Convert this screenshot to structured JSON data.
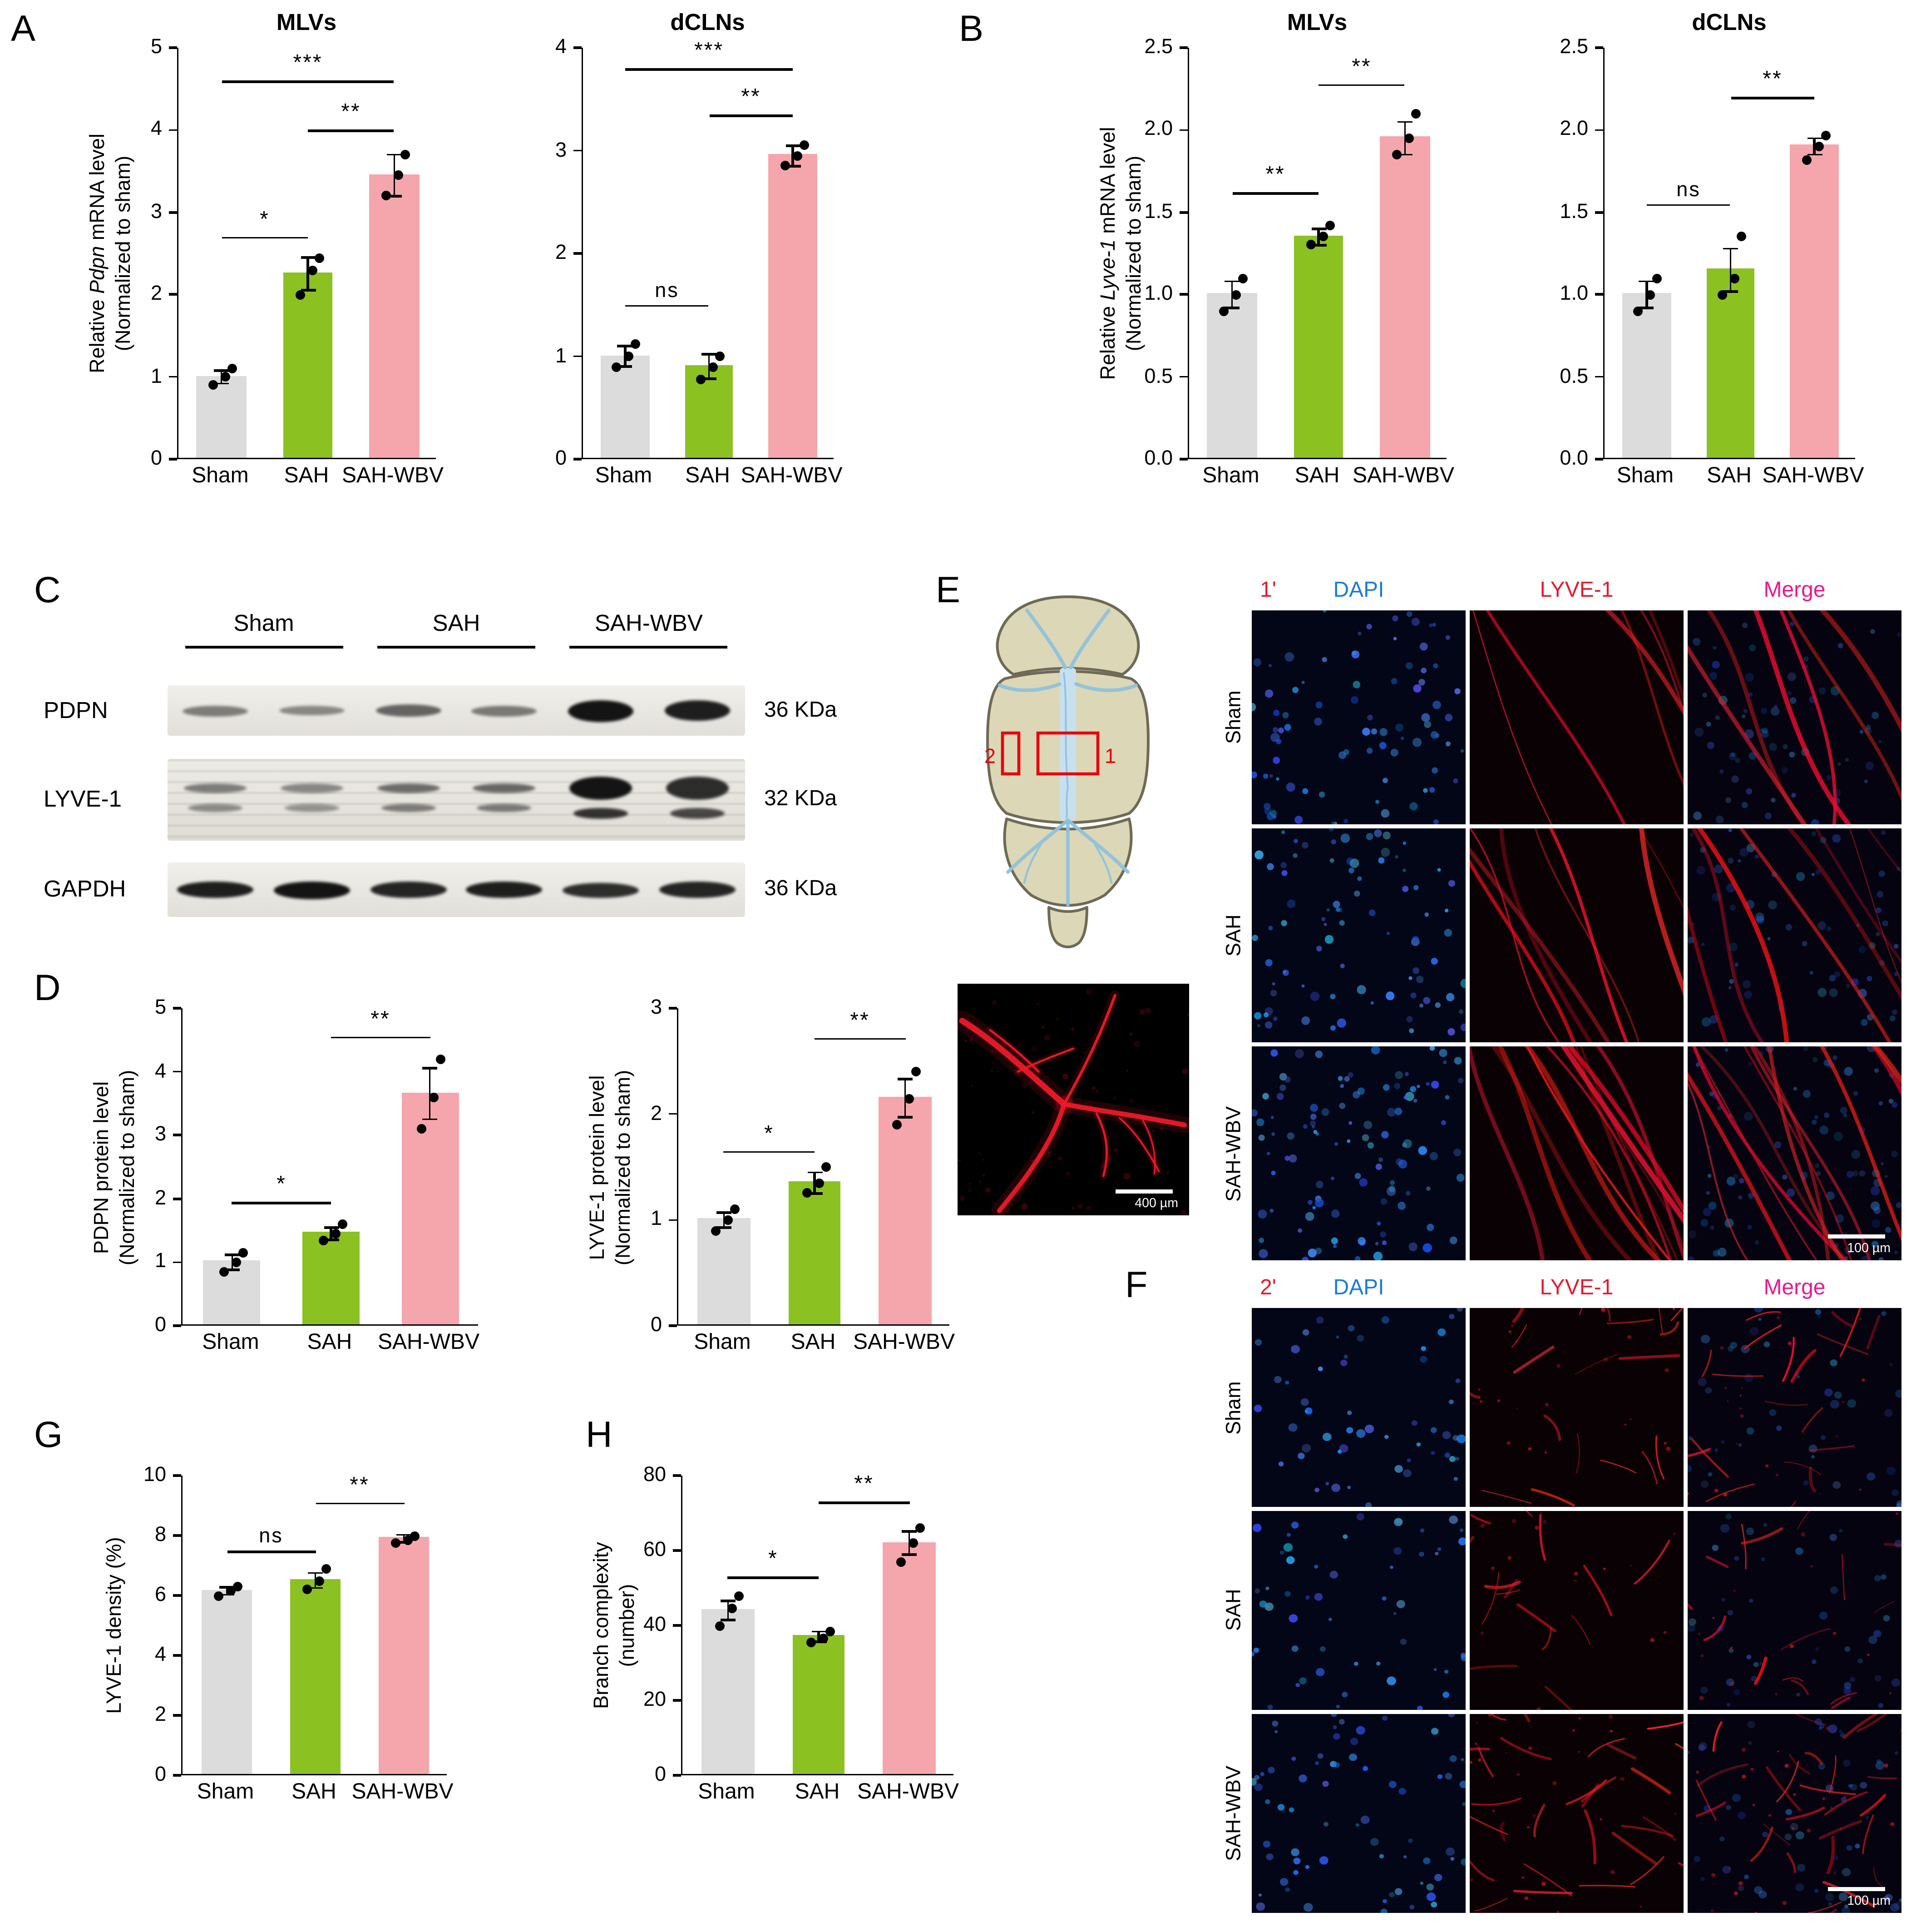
{
  "panel_labels": {
    "a": "A",
    "b": "B",
    "c": "C",
    "d": "D",
    "e": "E",
    "f": "F",
    "g": "G",
    "h": "H"
  },
  "colors": {
    "sham": "#dcdcdc",
    "sah": "#8cc122",
    "sah_wbv": "#f4a6ac",
    "dapi": "#1a7cd8",
    "red": "#e8192c",
    "merge": "#e9198c",
    "roi": "#e8000b"
  },
  "chart_data": [
    {
      "id": "A1",
      "panel": "A",
      "type": "bar",
      "title": "MLVs",
      "ylabel_lines": [
        [
          {
            "t": "Relative "
          },
          {
            "t": "Pdpn",
            "i": true
          },
          {
            "t": " mRNA level"
          }
        ],
        [
          {
            "t": "(Normalized to sham)"
          }
        ]
      ],
      "categories": [
        "Sham",
        "SAH",
        "SAH-WBV"
      ],
      "values": [
        1.0,
        2.25,
        3.45
      ],
      "errors": [
        0.08,
        0.2,
        0.25
      ],
      "points": [
        [
          0.9,
          1.0,
          1.1
        ],
        [
          2.0,
          2.3,
          2.45
        ],
        [
          3.2,
          3.45,
          3.7
        ]
      ],
      "yaxis": {
        "max": 5,
        "step": 1,
        "decimals": 0
      },
      "significance": [
        {
          "a": 0,
          "b": 1,
          "label": "*",
          "y": 2.7
        },
        {
          "a": 1,
          "b": 2,
          "label": "**",
          "y": 4.0
        },
        {
          "a": 0,
          "b": 2,
          "label": "***",
          "y": 4.6
        }
      ]
    },
    {
      "id": "A2",
      "panel": "A",
      "type": "bar",
      "title": "dCLNs",
      "categories": [
        "Sham",
        "SAH",
        "SAH-WBV"
      ],
      "values": [
        1.0,
        0.9,
        2.95
      ],
      "errors": [
        0.1,
        0.12,
        0.1
      ],
      "points": [
        [
          0.9,
          1.0,
          1.12
        ],
        [
          0.78,
          0.9,
          1.0
        ],
        [
          2.85,
          2.95,
          3.05
        ]
      ],
      "yaxis": {
        "max": 4,
        "step": 1,
        "decimals": 0
      },
      "significance": [
        {
          "a": 0,
          "b": 1,
          "label": "ns",
          "y": 1.5
        },
        {
          "a": 1,
          "b": 2,
          "label": "**",
          "y": 3.35
        },
        {
          "a": 0,
          "b": 2,
          "label": "***",
          "y": 3.8
        }
      ]
    },
    {
      "id": "B1",
      "panel": "B",
      "type": "bar",
      "title": "MLVs",
      "ylabel_lines": [
        [
          {
            "t": "Relative "
          },
          {
            "t": "Lyve-1",
            "i": true
          },
          {
            "t": " mRNA level"
          }
        ],
        [
          {
            "t": "(Normalized to sham)"
          }
        ]
      ],
      "categories": [
        "Sham",
        "SAH",
        "SAH-WBV"
      ],
      "values": [
        1.0,
        1.35,
        1.95
      ],
      "errors": [
        0.08,
        0.05,
        0.1
      ],
      "points": [
        [
          0.9,
          1.0,
          1.1
        ],
        [
          1.3,
          1.35,
          1.42
        ],
        [
          1.85,
          1.95,
          2.1
        ]
      ],
      "yaxis": {
        "max": 2.5,
        "step": 0.5,
        "decimals": 1
      },
      "significance": [
        {
          "a": 0,
          "b": 1,
          "label": "**",
          "y": 1.62
        },
        {
          "a": 1,
          "b": 2,
          "label": "**",
          "y": 2.28
        }
      ]
    },
    {
      "id": "B2",
      "panel": "B",
      "type": "bar",
      "title": "dCLNs",
      "categories": [
        "Sham",
        "SAH",
        "SAH-WBV"
      ],
      "values": [
        1.0,
        1.15,
        1.9
      ],
      "errors": [
        0.08,
        0.13,
        0.05
      ],
      "points": [
        [
          0.9,
          1.0,
          1.1
        ],
        [
          1.0,
          1.1,
          1.35
        ],
        [
          1.82,
          1.9,
          1.97
        ]
      ],
      "yaxis": {
        "max": 2.5,
        "step": 0.5,
        "decimals": 1
      },
      "significance": [
        {
          "a": 0,
          "b": 1,
          "label": "ns",
          "y": 1.55
        },
        {
          "a": 1,
          "b": 2,
          "label": "**",
          "y": 2.2
        }
      ]
    },
    {
      "id": "D1",
      "panel": "D",
      "type": "bar",
      "ylabel_lines": [
        [
          {
            "t": "PDPN protein level"
          }
        ],
        [
          {
            "t": "(Normalized to sham)"
          }
        ]
      ],
      "categories": [
        "Sham",
        "SAH",
        "SAH-WBV"
      ],
      "values": [
        1.0,
        1.45,
        3.65
      ],
      "errors": [
        0.12,
        0.1,
        0.4
      ],
      "points": [
        [
          0.85,
          1.0,
          1.15
        ],
        [
          1.35,
          1.45,
          1.6
        ],
        [
          3.1,
          3.6,
          4.2
        ]
      ],
      "yaxis": {
        "max": 5,
        "step": 1,
        "decimals": 0
      },
      "significance": [
        {
          "a": 0,
          "b": 1,
          "label": "*",
          "y": 1.95
        },
        {
          "a": 1,
          "b": 2,
          "label": "**",
          "y": 4.55
        }
      ]
    },
    {
      "id": "D2",
      "panel": "D",
      "type": "bar",
      "ylabel_lines": [
        [
          {
            "t": "LYVE-1 protein level"
          }
        ],
        [
          {
            "t": "(Normalized to sham)"
          }
        ]
      ],
      "categories": [
        "Sham",
        "SAH",
        "SAH-WBV"
      ],
      "values": [
        1.0,
        1.35,
        2.15
      ],
      "errors": [
        0.07,
        0.1,
        0.18
      ],
      "points": [
        [
          0.9,
          1.0,
          1.1
        ],
        [
          1.25,
          1.35,
          1.5
        ],
        [
          1.9,
          2.15,
          2.4
        ]
      ],
      "yaxis": {
        "max": 3,
        "step": 1,
        "decimals": 0
      },
      "significance": [
        {
          "a": 0,
          "b": 1,
          "label": "*",
          "y": 1.65
        },
        {
          "a": 1,
          "b": 2,
          "label": "**",
          "y": 2.72
        }
      ]
    },
    {
      "id": "G1",
      "panel": "G",
      "type": "bar",
      "ylabel_lines": [
        [
          {
            "t": "LYVE-1 density (%)"
          }
        ]
      ],
      "categories": [
        "Sham",
        "SAH",
        "SAH-WBV"
      ],
      "values": [
        6.15,
        6.5,
        7.9
      ],
      "errors": [
        0.12,
        0.25,
        0.12
      ],
      "points": [
        [
          6.0,
          6.15,
          6.3
        ],
        [
          6.2,
          6.5,
          6.9
        ],
        [
          7.75,
          7.85,
          8.0
        ]
      ],
      "yaxis": {
        "max": 10,
        "step": 2,
        "decimals": 0
      },
      "significance": [
        {
          "a": 0,
          "b": 1,
          "label": "ns",
          "y": 7.5
        },
        {
          "a": 1,
          "b": 2,
          "label": "**",
          "y": 9.1
        }
      ]
    },
    {
      "id": "H1",
      "panel": "H",
      "type": "bar",
      "ylabel_lines": [
        [
          {
            "t": "Branch complexity"
          }
        ],
        [
          {
            "t": "(number)"
          }
        ]
      ],
      "categories": [
        "Sham",
        "SAH",
        "SAH-WBV"
      ],
      "values": [
        44,
        37,
        62
      ],
      "errors": [
        2.5,
        1.3,
        3
      ],
      "points": [
        [
          40,
          44.5,
          48
        ],
        [
          35.5,
          36.5,
          38.5
        ],
        [
          57,
          62,
          66
        ]
      ],
      "yaxis": {
        "max": 80,
        "step": 20,
        "decimals": 0
      },
      "significance": [
        {
          "a": 0,
          "b": 1,
          "label": "*",
          "y": 53
        },
        {
          "a": 1,
          "b": 2,
          "label": "**",
          "y": 73
        }
      ]
    }
  ],
  "western_blot": {
    "group_labels": [
      "Sham",
      "SAH",
      "SAH-WBV"
    ],
    "rows": [
      {
        "label": "PDPN",
        "mw": "36 KDa",
        "style": "single",
        "band_width": 48,
        "band_heights": [
          8,
          7,
          9,
          8,
          16,
          15
        ],
        "band_intensity": [
          0.5,
          0.45,
          0.62,
          0.52,
          1.0,
          0.95
        ]
      },
      {
        "label": "LYVE-1",
        "mw": "32 KDa",
        "style": "doublet",
        "band_width": 46,
        "band_intensity": [
          0.5,
          0.45,
          0.58,
          0.6,
          1.0,
          0.88
        ]
      },
      {
        "label": "GAPDH",
        "mw": "36 KDa",
        "style": "single",
        "band_width": 56,
        "band_heights": [
          12,
          13,
          12,
          12,
          11,
          12
        ],
        "band_intensity": [
          0.95,
          1.0,
          0.92,
          0.95,
          0.88,
          0.92
        ]
      }
    ]
  },
  "schematic": {
    "roi1": "1",
    "roi2": "2"
  },
  "wholemount": {
    "scale_bar": "400 µm"
  },
  "micrograph_grids": [
    {
      "id": "E",
      "region": "1'",
      "columns": [
        "DAPI",
        "LYVE-1",
        "Merge"
      ],
      "rows": [
        "Sham",
        "SAH",
        "SAH-WBV"
      ],
      "scale_bar": "100 µm"
    },
    {
      "id": "F",
      "region": "2'",
      "columns": [
        "DAPI",
        "LYVE-1",
        "Merge"
      ],
      "rows": [
        "Sham",
        "SAH",
        "SAH-WBV"
      ],
      "scale_bar": "100 µm"
    }
  ]
}
